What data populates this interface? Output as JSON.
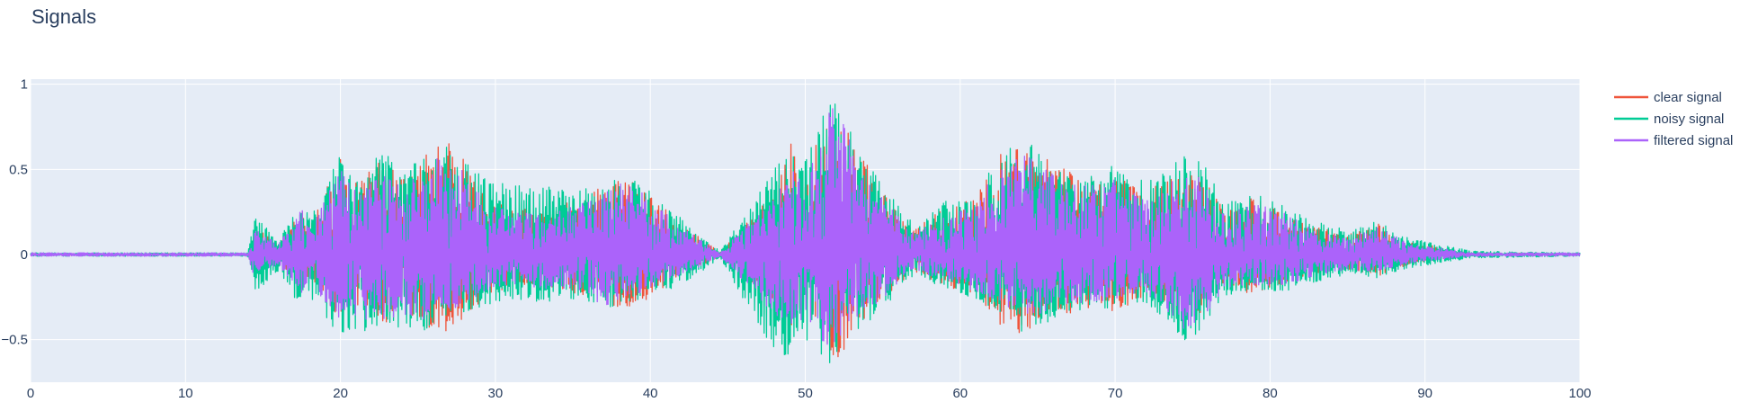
{
  "chart_data": {
    "type": "line",
    "title": "Signals",
    "xlabel": "",
    "ylabel": "",
    "xlim": [
      0,
      100
    ],
    "ylim": [
      -0.75,
      1.03
    ],
    "x_ticks": [
      0,
      10,
      20,
      30,
      40,
      50,
      60,
      70,
      80,
      90,
      100
    ],
    "x_tick_labels": [
      "0",
      "10",
      "20",
      "30",
      "40",
      "50",
      "60",
      "70",
      "80",
      "90",
      "100"
    ],
    "y_ticks": [
      1,
      0.5,
      0,
      -0.5
    ],
    "y_tick_labels": [
      "1",
      "0.5",
      "0",
      "−0.5"
    ],
    "grid": true,
    "legend_position": "top-right",
    "plot_background": "#e5ecf6",
    "series": [
      {
        "name": "clear signal",
        "color": "#ef553b",
        "envelope": {
          "x": [
            0,
            14,
            14.5,
            16,
            17.5,
            18,
            20,
            21,
            22,
            23,
            24,
            25.5,
            27,
            28,
            29.5,
            31,
            33,
            35,
            37,
            38.5,
            40,
            41.5,
            43,
            44.5,
            48,
            49,
            50,
            51.5,
            52,
            53.5,
            55,
            57,
            59,
            61,
            62.5,
            64,
            66,
            68,
            70,
            72,
            74.5,
            75.5,
            77,
            79,
            81,
            83,
            85,
            87,
            89,
            91,
            93,
            100
          ],
          "upper": [
            0.005,
            0.005,
            0.17,
            0.06,
            0.3,
            0.16,
            0.6,
            0.42,
            0.5,
            0.58,
            0.45,
            0.6,
            0.68,
            0.55,
            0.33,
            0.28,
            0.26,
            0.32,
            0.4,
            0.48,
            0.36,
            0.22,
            0.12,
            0.01,
            0.38,
            0.68,
            0.48,
            0.84,
            0.9,
            0.6,
            0.38,
            0.14,
            0.28,
            0.33,
            0.58,
            0.68,
            0.55,
            0.45,
            0.48,
            0.36,
            0.55,
            0.5,
            0.26,
            0.34,
            0.26,
            0.16,
            0.12,
            0.18,
            0.08,
            0.04,
            0.01,
            0.005
          ]
        }
      },
      {
        "name": "noisy signal",
        "color": "#00cc96",
        "envelope": {
          "x": [
            0,
            14,
            14.5,
            16,
            17.5,
            18,
            20,
            21,
            22,
            23,
            24,
            25.5,
            27,
            28,
            29.5,
            31,
            33,
            35,
            37,
            38.5,
            40,
            41.5,
            43,
            44.5,
            48,
            49,
            50,
            51.5,
            52,
            53.5,
            55,
            57,
            59,
            61,
            62.5,
            64,
            66,
            68,
            70,
            72,
            74.5,
            75.5,
            77,
            79,
            81,
            83,
            85,
            87,
            89,
            91,
            93,
            100
          ],
          "upper": [
            0.01,
            0.01,
            0.24,
            0.08,
            0.32,
            0.22,
            0.6,
            0.48,
            0.55,
            0.64,
            0.48,
            0.62,
            0.68,
            0.55,
            0.45,
            0.4,
            0.42,
            0.38,
            0.4,
            0.48,
            0.38,
            0.25,
            0.14,
            0.02,
            0.5,
            0.72,
            0.55,
            0.92,
            0.9,
            0.62,
            0.4,
            0.18,
            0.32,
            0.36,
            0.6,
            0.68,
            0.58,
            0.5,
            0.55,
            0.42,
            0.58,
            0.58,
            0.3,
            0.36,
            0.28,
            0.2,
            0.14,
            0.2,
            0.1,
            0.06,
            0.02,
            0.01
          ],
          "lower": [
            -0.01,
            -0.01,
            -0.22,
            -0.1,
            -0.32,
            -0.25,
            -0.48,
            -0.45,
            -0.5,
            -0.46,
            -0.42,
            -0.45,
            -0.38,
            -0.34,
            -0.3,
            -0.26,
            -0.28,
            -0.26,
            -0.34,
            -0.3,
            -0.26,
            -0.2,
            -0.12,
            -0.02,
            -0.58,
            -0.6,
            -0.55,
            -0.68,
            -0.6,
            -0.45,
            -0.32,
            -0.12,
            -0.2,
            -0.26,
            -0.34,
            -0.46,
            -0.4,
            -0.34,
            -0.32,
            -0.28,
            -0.5,
            -0.46,
            -0.24,
            -0.22,
            -0.22,
            -0.16,
            -0.12,
            -0.14,
            -0.08,
            -0.05,
            -0.02,
            -0.01
          ]
        }
      },
      {
        "name": "filtered signal",
        "color": "#ab63fa",
        "envelope": {
          "x": [
            0,
            14,
            14.5,
            16,
            17.5,
            18,
            20,
            21,
            22,
            23,
            24,
            25.5,
            27,
            28,
            29.5,
            31,
            33,
            35,
            37,
            38.5,
            40,
            41.5,
            43,
            44.5,
            48,
            49,
            50,
            51.5,
            52,
            53.5,
            55,
            57,
            59,
            61,
            62.5,
            64,
            66,
            68,
            70,
            72,
            74.5,
            75.5,
            77,
            79,
            81,
            83,
            85,
            87,
            89,
            91,
            93,
            100
          ],
          "upper": [
            0.01,
            0.01,
            0.16,
            0.06,
            0.28,
            0.16,
            0.5,
            0.38,
            0.42,
            0.5,
            0.4,
            0.55,
            0.6,
            0.48,
            0.3,
            0.25,
            0.24,
            0.28,
            0.36,
            0.44,
            0.33,
            0.2,
            0.1,
            0.01,
            0.34,
            0.52,
            0.4,
            0.84,
            0.88,
            0.52,
            0.34,
            0.12,
            0.24,
            0.3,
            0.52,
            0.6,
            0.5,
            0.42,
            0.44,
            0.32,
            0.5,
            0.46,
            0.24,
            0.3,
            0.24,
            0.14,
            0.1,
            0.16,
            0.06,
            0.04,
            0.01,
            0.01
          ],
          "lower": [
            -0.01,
            -0.01,
            -0.15,
            -0.06,
            -0.26,
            -0.16,
            -0.4,
            -0.36,
            -0.4,
            -0.38,
            -0.36,
            -0.38,
            -0.32,
            -0.3,
            -0.22,
            -0.18,
            -0.2,
            -0.2,
            -0.3,
            -0.26,
            -0.2,
            -0.14,
            -0.08,
            -0.01,
            -0.35,
            -0.45,
            -0.38,
            -0.55,
            -0.52,
            -0.36,
            -0.26,
            -0.09,
            -0.16,
            -0.22,
            -0.28,
            -0.38,
            -0.32,
            -0.3,
            -0.26,
            -0.22,
            -0.45,
            -0.4,
            -0.2,
            -0.18,
            -0.18,
            -0.12,
            -0.09,
            -0.1,
            -0.05,
            -0.03,
            -0.01,
            -0.01
          ]
        }
      }
    ]
  }
}
